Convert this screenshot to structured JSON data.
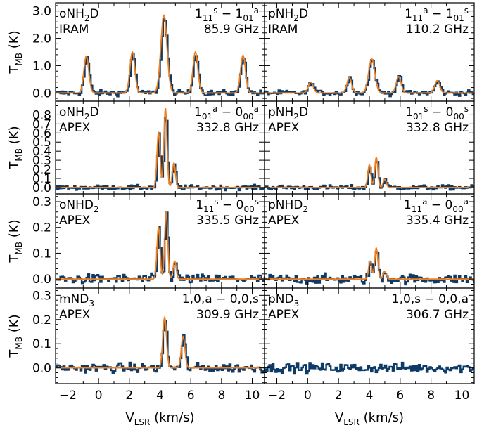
{
  "chart_data": {
    "type": "line",
    "layout": "4 rows x 2 columns, shared x axis",
    "xlabel_main": "V",
    "xlabel_sub": "LSR",
    "xlabel_unit": " (km/s)",
    "ylabel_main": "T",
    "ylabel_sub": "MB",
    "ylabel_unit": " (K)",
    "xlim": [
      -2.8,
      10.8
    ],
    "x_ticks": [
      -2,
      0,
      2,
      4,
      6,
      8,
      10
    ],
    "x_tick_labels": [
      "−2",
      "0",
      "2",
      "4",
      "6",
      "8",
      "10"
    ],
    "x_tick_labels_right": [
      "−2",
      "0",
      "2",
      "4",
      "6",
      "8",
      "10"
    ],
    "series_styles": {
      "observed": {
        "color": "#0d3a66",
        "style": "histogram"
      },
      "model": {
        "color": "#f07f1f",
        "style": "line"
      }
    },
    "rows": [
      {
        "ylim": [
          -0.3,
          3.3
        ],
        "y_ticks": [
          0,
          1,
          2,
          3
        ],
        "y_tick_labels": [
          "0.0",
          "1.0",
          "2.0",
          "3.0"
        ],
        "noise": 0.07,
        "panels": [
          {
            "species": "oNH",
            "species_sub": "2",
            "species_end": "D",
            "trans_a": "1",
            "trans_a_sub": "11",
            "trans_a_sup": "s",
            "trans_dash": " − ",
            "trans_b": "1",
            "trans_b_sub": "01",
            "trans_b_sup": "a",
            "telescope": "IRAM",
            "frequency": "85.9 GHz",
            "peaks": [
              {
                "center": -0.8,
                "amp": 1.35,
                "width": 0.16
              },
              {
                "center": 2.2,
                "amp": 1.5,
                "width": 0.16
              },
              {
                "center": 4.25,
                "amp": 2.85,
                "width": 0.2
              },
              {
                "center": 6.3,
                "amp": 1.5,
                "width": 0.16
              },
              {
                "center": 9.4,
                "amp": 1.38,
                "width": 0.16
              }
            ]
          },
          {
            "species": "pNH",
            "species_sub": "2",
            "species_end": "D",
            "trans_a": "1",
            "trans_a_sub": "11",
            "trans_a_sup": "a",
            "trans_dash": " − ",
            "trans_b": "1",
            "trans_b_sub": "01",
            "trans_b_sup": "s",
            "telescope": "IRAM",
            "frequency": "110.2 GHz",
            "peaks": [
              {
                "center": 0.2,
                "amp": 0.4,
                "width": 0.16
              },
              {
                "center": 2.7,
                "amp": 0.55,
                "width": 0.16
              },
              {
                "center": 4.15,
                "amp": 1.25,
                "width": 0.2
              },
              {
                "center": 5.9,
                "amp": 0.6,
                "width": 0.16
              },
              {
                "center": 8.4,
                "amp": 0.45,
                "width": 0.16
              }
            ]
          }
        ]
      },
      {
        "ylim": [
          -0.07,
          0.95
        ],
        "y_ticks": [
          0,
          0.1,
          0.2,
          0.3,
          0.4,
          0.5,
          0.6,
          0.7,
          0.8
        ],
        "y_tick_labels": [
          "0.0",
          "0.1",
          "0.2",
          "0.3",
          "0.4",
          "0.5",
          "0.6",
          "0.7",
          "0.8"
        ],
        "noise": 0.018,
        "panels": [
          {
            "species": "oNH",
            "species_sub": "2",
            "species_end": "D",
            "trans_a": "1",
            "trans_a_sub": "01",
            "trans_a_sup": "a",
            "trans_dash": " − ",
            "trans_b": "0",
            "trans_b_sub": "00",
            "trans_b_sup": "a",
            "telescope": "APEX",
            "frequency": "332.8 GHz",
            "peaks": [
              {
                "center": 3.9,
                "amp": 0.6,
                "width": 0.1
              },
              {
                "center": 4.35,
                "amp": 0.87,
                "width": 0.1
              },
              {
                "center": 4.9,
                "amp": 0.27,
                "width": 0.1
              }
            ]
          },
          {
            "species": "pNH",
            "species_sub": "2",
            "species_end": "D",
            "trans_a": "1",
            "trans_a_sub": "01",
            "trans_a_sup": "s",
            "trans_dash": " − ",
            "trans_b": "0",
            "trans_b_sub": "00",
            "trans_b_sup": "s",
            "telescope": "APEX",
            "frequency": "332.8 GHz",
            "peaks": [
              {
                "center": 4.0,
                "amp": 0.25,
                "width": 0.1
              },
              {
                "center": 4.45,
                "amp": 0.33,
                "width": 0.1
              },
              {
                "center": 5.0,
                "amp": 0.09,
                "width": 0.1
              }
            ]
          }
        ]
      },
      {
        "ylim": [
          -0.035,
          0.33
        ],
        "y_ticks": [
          0,
          0.1,
          0.2,
          0.3
        ],
        "y_tick_labels": [
          "0.0",
          "0.1",
          "0.2",
          "0.3"
        ],
        "noise": 0.013,
        "panels": [
          {
            "species": "oNHD",
            "species_sub": "2",
            "species_end": "",
            "trans_a": "1",
            "trans_a_sub": "11",
            "trans_a_sup": "s",
            "trans_dash": " − ",
            "trans_b": "0",
            "trans_b_sub": "00",
            "trans_b_sup": "s",
            "telescope": "APEX",
            "frequency": "335.5 GHz",
            "peaks": [
              {
                "center": 3.9,
                "amp": 0.2,
                "width": 0.1
              },
              {
                "center": 4.4,
                "amp": 0.26,
                "width": 0.1
              },
              {
                "center": 4.95,
                "amp": 0.07,
                "width": 0.1
              }
            ]
          },
          {
            "species": "pNHD",
            "species_sub": "2",
            "species_end": "",
            "trans_a": "1",
            "trans_a_sub": "11",
            "trans_a_sup": "a",
            "trans_dash": " − ",
            "trans_b": "0",
            "trans_b_sub": "00",
            "trans_b_sup": "a",
            "telescope": "APEX",
            "frequency": "335.4 GHz",
            "peaks": [
              {
                "center": 4.05,
                "amp": 0.07,
                "width": 0.1
              },
              {
                "center": 4.45,
                "amp": 0.12,
                "width": 0.1
              },
              {
                "center": 5.0,
                "amp": 0.03,
                "width": 0.1
              }
            ]
          }
        ]
      },
      {
        "ylim": [
          -0.065,
          0.33
        ],
        "y_ticks": [
          0,
          0.1,
          0.2,
          0.3
        ],
        "y_tick_labels": [
          "0.0",
          "0.1",
          "0.2",
          "0.3"
        ],
        "noise": 0.014,
        "panels": [
          {
            "species": "mND",
            "species_sub": "3",
            "species_end": "",
            "trans_plain": "1,0,a − 0,0,s",
            "telescope": "APEX",
            "frequency": "309.9 GHz",
            "peaks": [
              {
                "center": 4.3,
                "amp": 0.21,
                "width": 0.12
              },
              {
                "center": 5.5,
                "amp": 0.13,
                "width": 0.12
              }
            ]
          },
          {
            "species": "pND",
            "species_sub": "3",
            "species_end": "",
            "trans_plain": "1,0,s − 0,0,a",
            "telescope": "APEX",
            "frequency": "306.7 GHz",
            "no_model": true,
            "peaks": []
          }
        ]
      }
    ]
  }
}
